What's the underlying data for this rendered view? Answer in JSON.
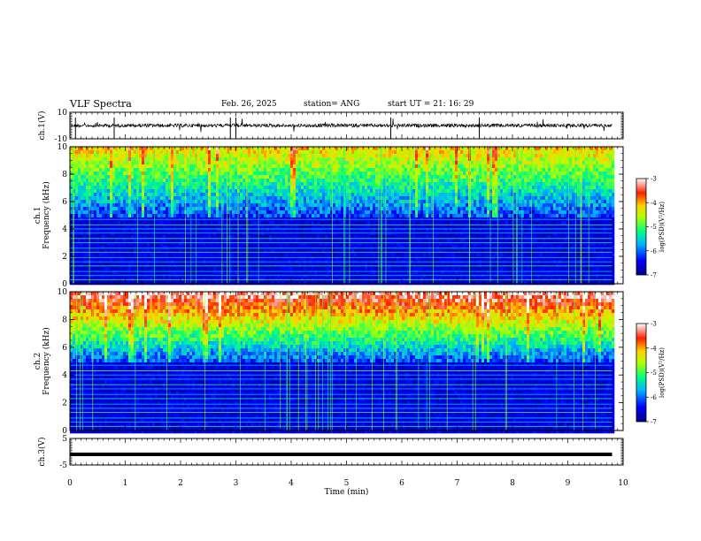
{
  "header": {
    "title": "VLF Spectra",
    "date": "Feb. 26, 2025",
    "station": "station= ANG",
    "start": "start  UT  =   21: 16: 29"
  },
  "chart_data": [
    {
      "type": "line",
      "name": "ch1-waveform",
      "ylabel": "ch.1(V)",
      "ylim": [
        -10,
        10
      ],
      "yticks": [
        "10",
        "-10"
      ],
      "xlim": [
        0,
        10
      ],
      "baseline": 0,
      "trace_end_min": 9.8,
      "color": "#000000"
    },
    {
      "type": "heatmap",
      "name": "ch1-spectrogram",
      "ylabel": "ch.1\nFrequency  (kHz)",
      "ylim": [
        0,
        10
      ],
      "yticks": [
        "0",
        "2",
        "4",
        "6",
        "8",
        "10"
      ],
      "xlim": [
        0,
        10
      ],
      "data_end_min": 9.8,
      "colorbar": {
        "label": "log(PSD)(V²/Hz)",
        "ticks": [
          "-3",
          "-4",
          "-5",
          "-6",
          "-7"
        ],
        "range": [
          -7,
          -3
        ]
      }
    },
    {
      "type": "heatmap",
      "name": "ch2-spectrogram",
      "ylabel": "ch.2\nFrequency  (kHz)",
      "ylim": [
        0,
        10
      ],
      "yticks": [
        "0",
        "2",
        "4",
        "6",
        "8",
        "10"
      ],
      "xlim": [
        0,
        10
      ],
      "data_end_min": 9.8,
      "colorbar": {
        "label": "log(PSD)(V²/Hz)",
        "ticks": [
          "-3",
          "-4",
          "-5",
          "-6",
          "-7"
        ],
        "range": [
          -7,
          -3
        ]
      }
    },
    {
      "type": "line",
      "name": "ch3-waveform",
      "ylabel": "ch.3(V)",
      "ylim": [
        -5,
        5
      ],
      "yticks": [
        "5",
        "-5"
      ],
      "xlim": [
        0,
        10
      ],
      "level": -1,
      "trace_end_min": 9.8,
      "color": "#000000"
    }
  ],
  "xaxis": {
    "label": "Time  (min)",
    "ticks": [
      "0",
      "1",
      "2",
      "3",
      "4",
      "5",
      "6",
      "7",
      "8",
      "9",
      "10"
    ]
  }
}
